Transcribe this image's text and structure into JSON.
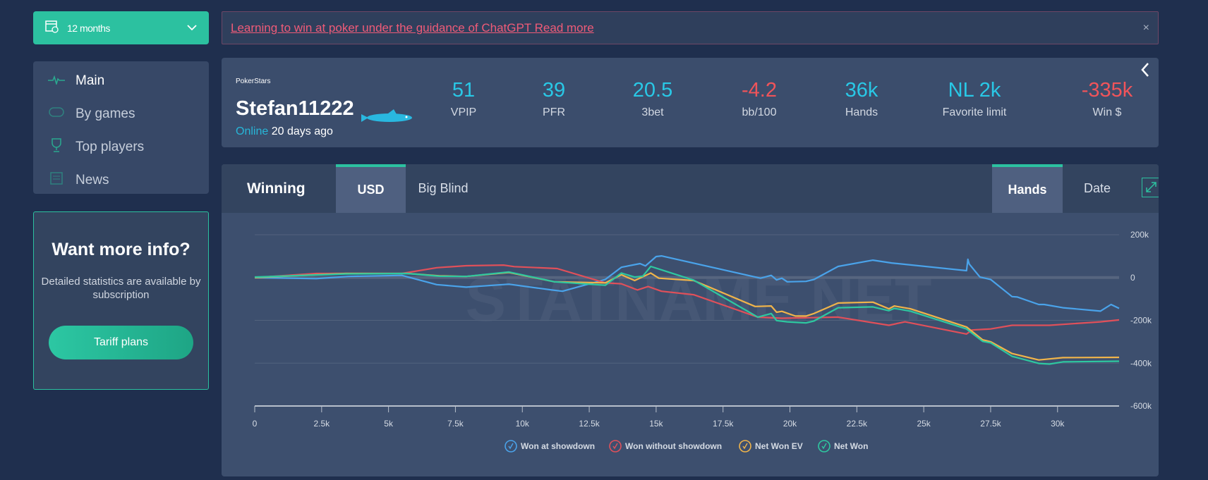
{
  "period": {
    "label": "12 months",
    "icon": "calendar-icon"
  },
  "nav": [
    {
      "label": "Main",
      "icon": "pulse-icon"
    },
    {
      "label": "By games",
      "icon": "table-icon"
    },
    {
      "label": "Top players",
      "icon": "trophy-icon"
    },
    {
      "label": "News",
      "icon": "newspaper-icon"
    }
  ],
  "promo": {
    "title": "Want more info?",
    "text": "Detailed statistics are available by subscription",
    "button": "Tariff plans"
  },
  "banner": {
    "text": "Learning to win at poker under the guidance of ChatGPT Read more",
    "close": "×"
  },
  "profile": {
    "room": "PokerStars",
    "name": "Stefan11222",
    "online_label": "Online",
    "last_seen": "20 days ago",
    "stats": [
      {
        "value": "51",
        "label": "VPIP"
      },
      {
        "value": "39",
        "label": "PFR"
      },
      {
        "value": "20.5",
        "label": "3bet"
      },
      {
        "value": "-4.2",
        "label": "bb/100"
      },
      {
        "value": "36k",
        "label": "Hands"
      },
      {
        "value": "NL 2k",
        "label": "Favorite limit"
      },
      {
        "value": "-335k",
        "label": "Win $"
      }
    ]
  },
  "chart_panel": {
    "title": "Winning",
    "tabs_unit": [
      "USD",
      "Big Blind"
    ],
    "tabs_axis": [
      "Hands",
      "Date"
    ],
    "watermark": "STATNAME.NET"
  },
  "colors": {
    "accent": "#2cc1a0",
    "blue": "#4aa3ea",
    "red": "#e0505a",
    "yellow": "#f0b44a",
    "green": "#2ec8a0"
  },
  "chart_data": {
    "type": "line",
    "xlabel": "Hands",
    "ylabel": "USD",
    "xlim": [
      0,
      32300
    ],
    "ylim": [
      -600000,
      200000
    ],
    "xticks": [
      "0",
      "2.5k",
      "5k",
      "7.5k",
      "10k",
      "12.5k",
      "15k",
      "17.5k",
      "20k",
      "22.5k",
      "25k",
      "27.5k",
      "30k"
    ],
    "xtick_values": [
      0,
      2.5,
      5,
      7.5,
      10,
      12.5,
      15,
      17.5,
      20,
      22.5,
      25,
      27.5,
      30
    ],
    "yticks": [
      "200k",
      "0",
      "-200k",
      "-400k",
      "-600k"
    ],
    "ytick_values": [
      200,
      0,
      -200,
      -400,
      -600
    ],
    "units": "x in thousands of hands, y in thousands of USD",
    "legend_position": "bottom",
    "series": [
      {
        "name": "Won at showdown",
        "color": "#4aa3ea",
        "points": [
          [
            0,
            0
          ],
          [
            2.3,
            -5
          ],
          [
            3.5,
            5
          ],
          [
            5.5,
            10
          ],
          [
            6.8,
            -33
          ],
          [
            7.9,
            -45
          ],
          [
            9.5,
            -31
          ],
          [
            11.1,
            -58
          ],
          [
            11.5,
            -64
          ],
          [
            13.1,
            -9
          ],
          [
            13.7,
            48
          ],
          [
            14.4,
            65
          ],
          [
            14.6,
            54
          ],
          [
            15,
            98
          ],
          [
            15.2,
            101
          ],
          [
            18.9,
            -3
          ],
          [
            19.3,
            10
          ],
          [
            19.5,
            -11
          ],
          [
            19.7,
            -3
          ],
          [
            19.9,
            -20
          ],
          [
            20.6,
            -18
          ],
          [
            20.9,
            -9
          ],
          [
            21.8,
            52
          ],
          [
            23.1,
            81
          ],
          [
            23.8,
            68
          ],
          [
            26.6,
            32
          ],
          [
            26.65,
            85
          ],
          [
            26.7,
            63
          ],
          [
            27.1,
            2
          ],
          [
            27.5,
            -9
          ],
          [
            28.3,
            -89
          ],
          [
            28.5,
            -91
          ],
          [
            29.3,
            -126
          ],
          [
            29.5,
            -126
          ],
          [
            30.2,
            -141
          ],
          [
            31.6,
            -157
          ],
          [
            32,
            -126
          ],
          [
            32.3,
            -144
          ]
        ]
      },
      {
        "name": "Won without showdown",
        "color": "#e0505a",
        "points": [
          [
            0,
            0
          ],
          [
            2.3,
            19
          ],
          [
            5.5,
            19
          ],
          [
            6.8,
            46
          ],
          [
            7.9,
            55
          ],
          [
            9.3,
            58
          ],
          [
            9.7,
            51
          ],
          [
            11.3,
            42
          ],
          [
            13.1,
            -25
          ],
          [
            13.7,
            -29
          ],
          [
            14.3,
            -58
          ],
          [
            14.7,
            -42
          ],
          [
            15.2,
            -64
          ],
          [
            16.4,
            -80
          ],
          [
            18.8,
            -185
          ],
          [
            19.7,
            -190
          ],
          [
            21.8,
            -185
          ],
          [
            23.7,
            -223
          ],
          [
            24.3,
            -207
          ],
          [
            26.6,
            -264
          ],
          [
            26.8,
            -245
          ],
          [
            27.5,
            -240
          ],
          [
            28.3,
            -223
          ],
          [
            29.7,
            -223
          ],
          [
            31.6,
            -207
          ],
          [
            32.3,
            -198
          ]
        ]
      },
      {
        "name": "Net Won EV",
        "color": "#f0b44a",
        "points": [
          [
            0,
            0
          ],
          [
            3.4,
            19
          ],
          [
            5.7,
            19
          ],
          [
            6.9,
            8
          ],
          [
            7.9,
            5
          ],
          [
            9.5,
            24
          ],
          [
            11.2,
            -20
          ],
          [
            13.1,
            -25
          ],
          [
            13.7,
            13
          ],
          [
            14.2,
            -14
          ],
          [
            14.8,
            21
          ],
          [
            15.1,
            -3
          ],
          [
            16.4,
            -14
          ],
          [
            18.7,
            -135
          ],
          [
            19.3,
            -133
          ],
          [
            19.5,
            -162
          ],
          [
            19.7,
            -158
          ],
          [
            20.2,
            -180
          ],
          [
            20.6,
            -180
          ],
          [
            20.9,
            -168
          ],
          [
            21.8,
            -119
          ],
          [
            23.1,
            -115
          ],
          [
            23.7,
            -146
          ],
          [
            23.9,
            -133
          ],
          [
            24.5,
            -146
          ],
          [
            26.6,
            -231
          ],
          [
            27.2,
            -291
          ],
          [
            27.5,
            -300
          ],
          [
            28.3,
            -355
          ],
          [
            29.3,
            -385
          ],
          [
            30.2,
            -374
          ],
          [
            32.3,
            -373
          ]
        ]
      },
      {
        "name": "Net Won",
        "color": "#2ec8a0",
        "points": [
          [
            0,
            2
          ],
          [
            3.4,
            17
          ],
          [
            5.7,
            19
          ],
          [
            6.9,
            6
          ],
          [
            7.9,
            5
          ],
          [
            9.5,
            26
          ],
          [
            11.2,
            -20
          ],
          [
            13.1,
            -36
          ],
          [
            13.7,
            21
          ],
          [
            14.2,
            2
          ],
          [
            14.5,
            6
          ],
          [
            14.8,
            52
          ],
          [
            16.4,
            -12
          ],
          [
            18.8,
            -185
          ],
          [
            19.3,
            -168
          ],
          [
            19.5,
            -201
          ],
          [
            19.9,
            -207
          ],
          [
            20.6,
            -212
          ],
          [
            20.9,
            -203
          ],
          [
            21.8,
            -141
          ],
          [
            23.1,
            -137
          ],
          [
            23.7,
            -155
          ],
          [
            23.9,
            -144
          ],
          [
            24.5,
            -157
          ],
          [
            26.6,
            -240
          ],
          [
            27.2,
            -298
          ],
          [
            27.5,
            -305
          ],
          [
            28.3,
            -368
          ],
          [
            29.3,
            -401
          ],
          [
            29.7,
            -404
          ],
          [
            30.2,
            -394
          ],
          [
            32.3,
            -391
          ]
        ]
      }
    ]
  }
}
